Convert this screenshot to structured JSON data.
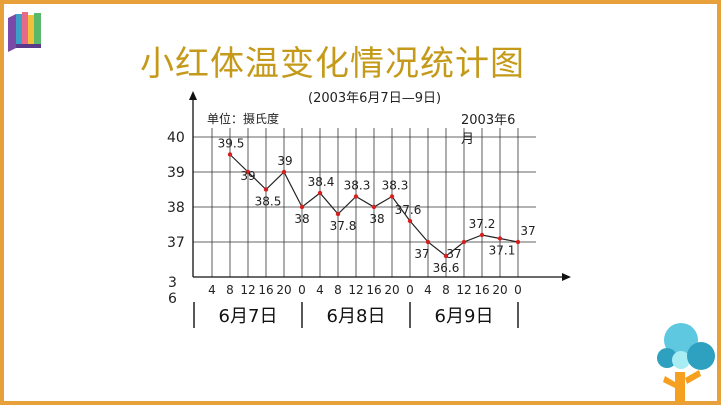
{
  "title": "小红体温变化情况统计图",
  "colors": {
    "frame": "#e8a03a",
    "title": "#c59a1a",
    "line": "#222222",
    "point": "#d62020",
    "grid": "#333333"
  },
  "chart_data": {
    "type": "line",
    "subtitle": "(2003年6月7日—9日)",
    "unit_label": "单位：摄氏度",
    "corner_label": "2003年6月",
    "ylim": [
      36,
      40
    ],
    "y_ticks": [
      "40",
      "39",
      "38",
      "37",
      "36"
    ],
    "x_ticks": [
      "4",
      "8",
      "12",
      "16",
      "20",
      "0",
      "4",
      "8",
      "12",
      "16",
      "20",
      "0",
      "4",
      "8",
      "12",
      "16",
      "20",
      "0"
    ],
    "day_labels": [
      "6月7日",
      "6月8日",
      "6月9日"
    ],
    "grid": true,
    "series": [
      {
        "x": [
          "8",
          "12",
          "16",
          "20",
          "0",
          "4",
          "8",
          "12",
          "16",
          "20",
          "0",
          "4",
          "8",
          "12",
          "16",
          "20",
          "0"
        ],
        "values": [
          39.5,
          39,
          38.5,
          39,
          38,
          38.4,
          37.8,
          38.3,
          38,
          38.3,
          37.6,
          37,
          36.6,
          37,
          37.2,
          37.1,
          37
        ],
        "labels": [
          "39.5",
          "39",
          "38.5",
          "39",
          "38",
          "38.4",
          "37.8",
          "38.3",
          "38",
          "38.3",
          "37.6",
          "37",
          "36.6",
          "37",
          "37.2",
          "37.1",
          "37"
        ]
      }
    ]
  }
}
